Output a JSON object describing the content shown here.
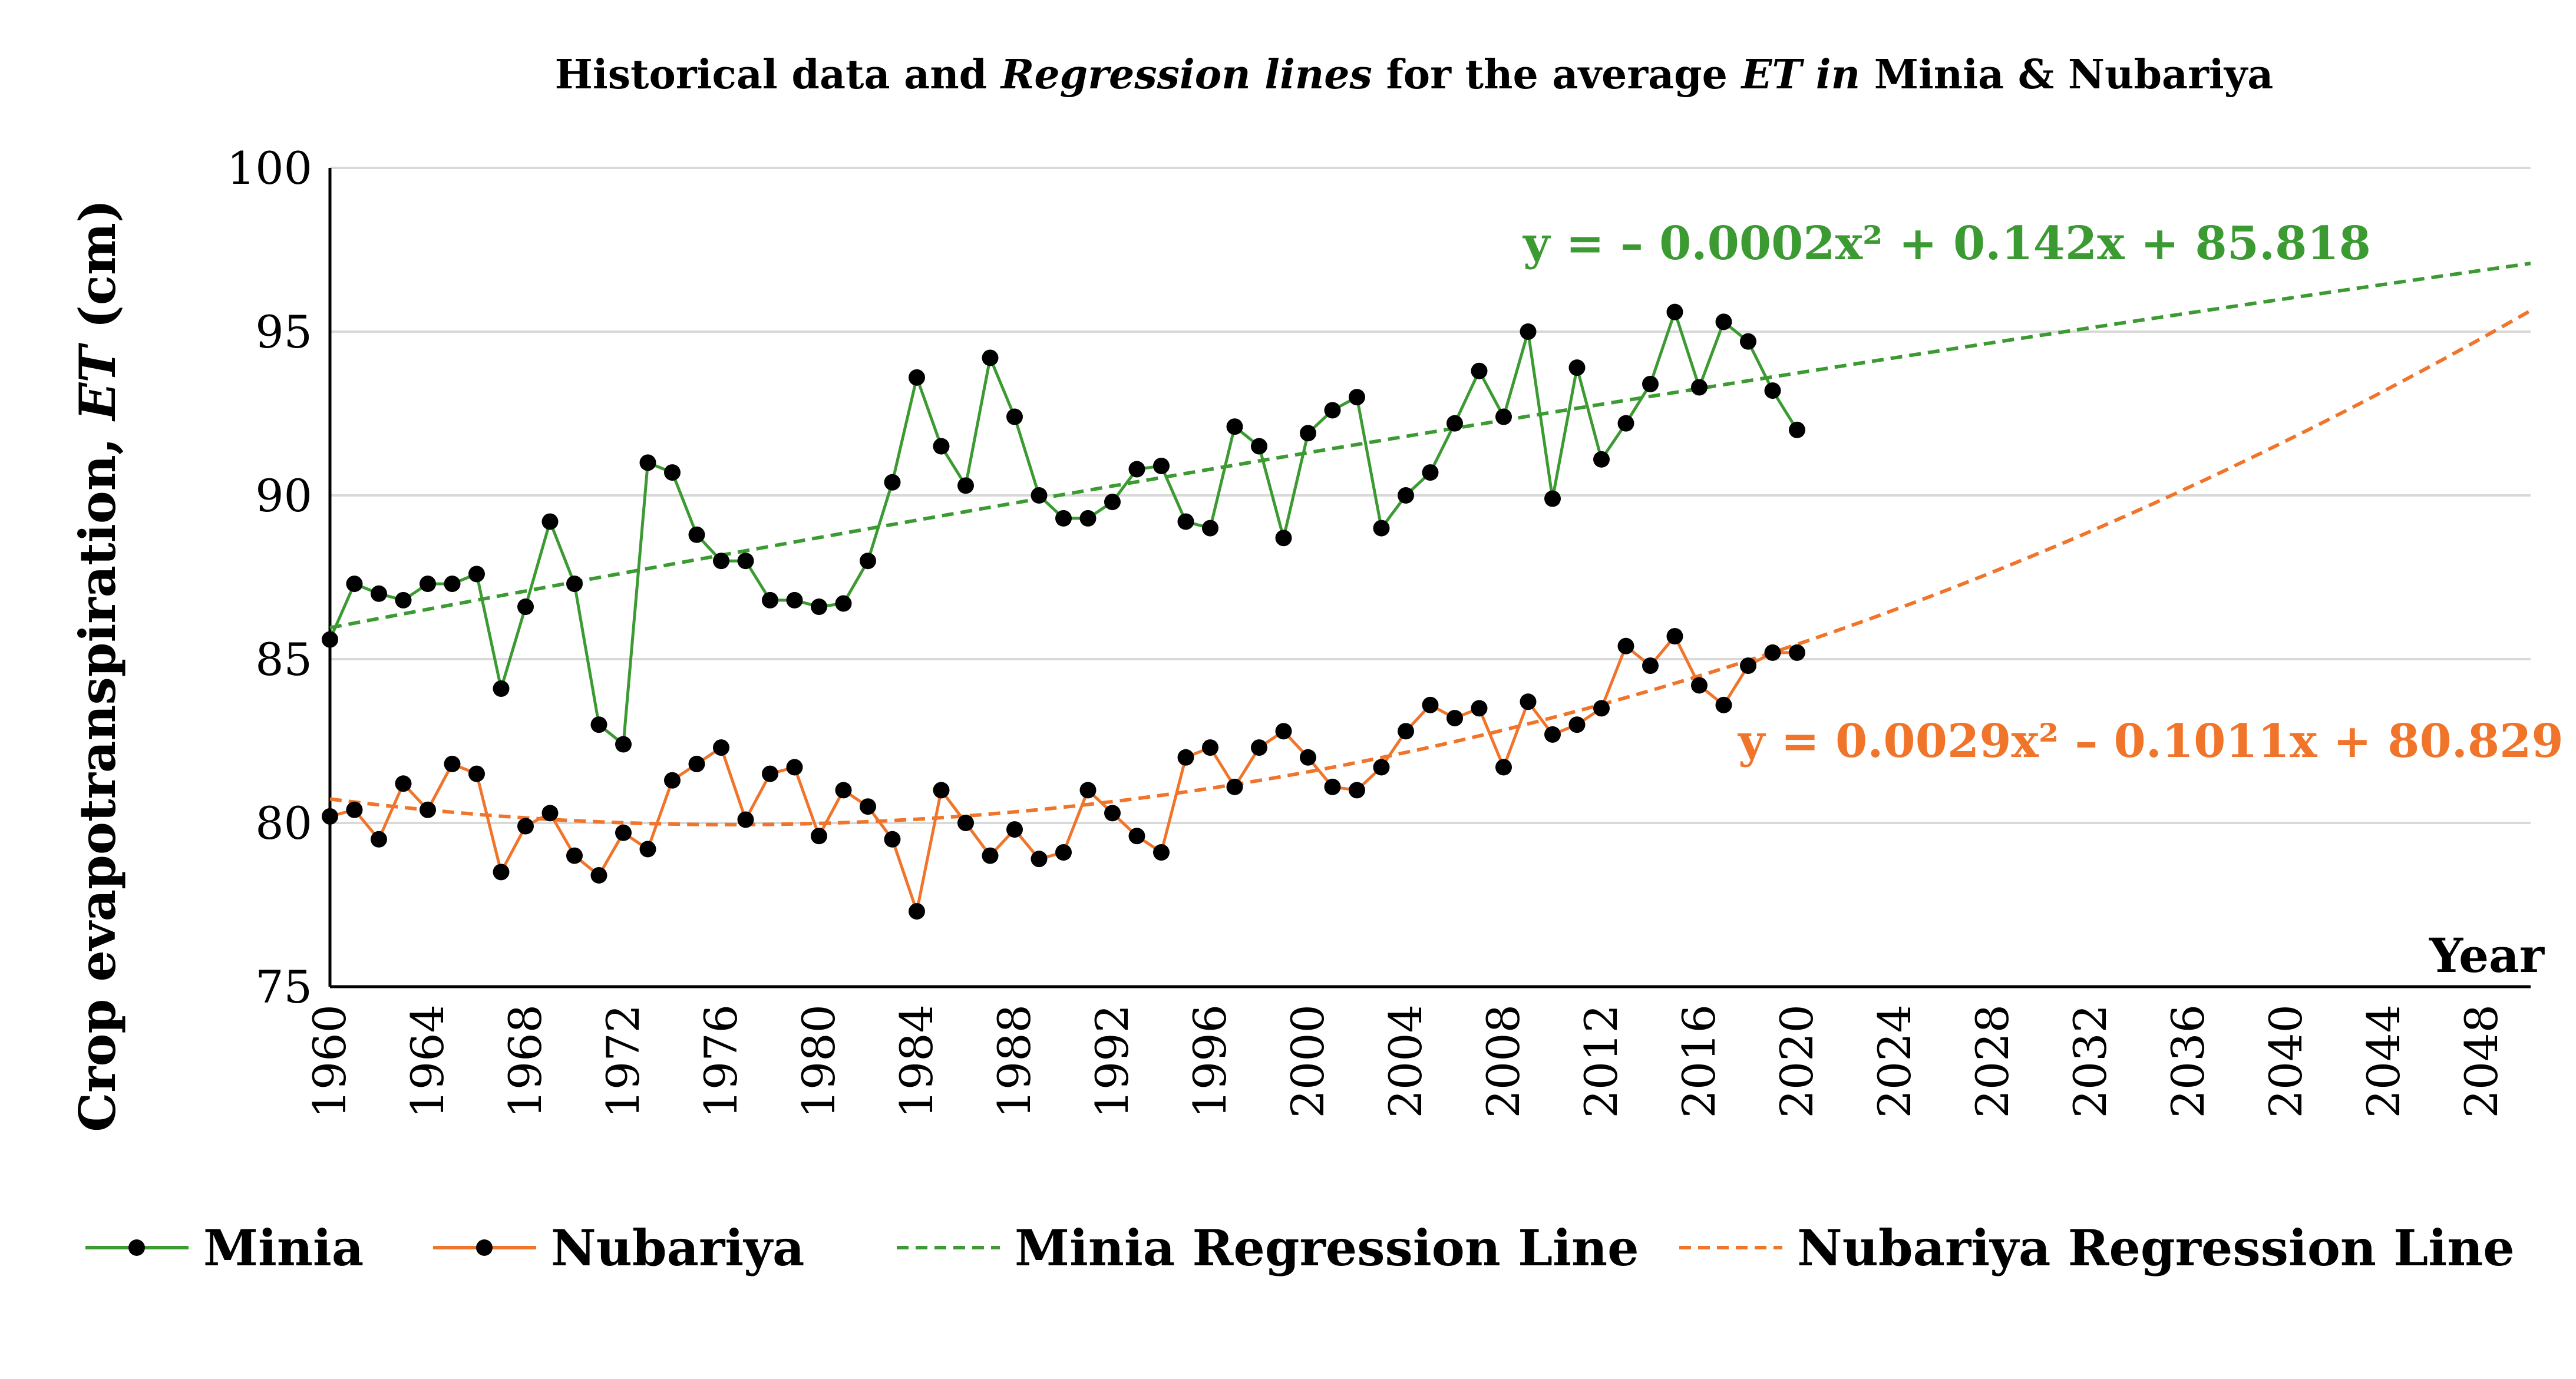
{
  "chart_data": {
    "type": "line",
    "title": {
      "prefix": "Historical data and ",
      "italic1": "Regression lines",
      "middle": " for the average ",
      "italic2": "ET  in",
      "suffix": " Minia & Nubariya"
    },
    "ylabel": {
      "prefix": "Crop evapotranspiration, ",
      "italic": "ET",
      "suffix": " (cm)"
    },
    "xlabel": "Year",
    "ylim": [
      75,
      100
    ],
    "yticks": [
      "75",
      "80",
      "85",
      "90",
      "95",
      "100"
    ],
    "xlim": [
      1960,
      2050
    ],
    "xticks": [
      "1960",
      "1964",
      "1968",
      "1972",
      "1976",
      "1980",
      "1984",
      "1988",
      "1992",
      "1996",
      "2000",
      "2004",
      "2008",
      "2012",
      "2016",
      "2020",
      "2024",
      "2028",
      "2032",
      "2036",
      "2040",
      "2044",
      "2048"
    ],
    "years": [
      1960,
      1961,
      1962,
      1963,
      1964,
      1965,
      1966,
      1967,
      1968,
      1969,
      1970,
      1971,
      1972,
      1973,
      1974,
      1975,
      1976,
      1977,
      1978,
      1979,
      1980,
      1981,
      1982,
      1983,
      1984,
      1985,
      1986,
      1987,
      1988,
      1989,
      1990,
      1991,
      1992,
      1993,
      1994,
      1995,
      1996,
      1997,
      1998,
      1999,
      2000,
      2001,
      2002,
      2003,
      2004,
      2005,
      2006,
      2007,
      2008,
      2009,
      2010,
      2011,
      2012,
      2013,
      2014,
      2015,
      2016,
      2017,
      2018,
      2019,
      2020
    ],
    "series": [
      {
        "name": "Minia",
        "color": "#3c9a32",
        "values": [
          85.6,
          87.3,
          87.0,
          86.8,
          87.3,
          87.3,
          87.6,
          84.1,
          86.6,
          89.2,
          87.3,
          83.0,
          82.4,
          91.0,
          90.7,
          88.8,
          88.0,
          88.0,
          86.8,
          86.8,
          86.6,
          86.7,
          88.0,
          90.4,
          93.6,
          91.5,
          90.3,
          94.2,
          92.4,
          90.0,
          89.3,
          89.3,
          89.8,
          90.8,
          90.9,
          89.2,
          89.0,
          92.1,
          91.5,
          88.7,
          91.9,
          92.6,
          93.0,
          89.0,
          90.0,
          90.7,
          92.2,
          93.8,
          92.4,
          95.0,
          89.9,
          93.9,
          91.1,
          92.2,
          93.4,
          95.6,
          93.3,
          95.3,
          94.7,
          93.2,
          92.0
        ]
      },
      {
        "name": "Nubariya",
        "color": "#f0742a",
        "values": [
          80.2,
          80.4,
          79.5,
          81.2,
          80.4,
          81.8,
          81.5,
          78.5,
          79.9,
          80.3,
          79.0,
          78.4,
          79.7,
          79.2,
          81.3,
          81.8,
          82.3,
          80.1,
          81.5,
          81.7,
          79.6,
          81.0,
          80.5,
          79.5,
          77.3,
          81.0,
          80.0,
          79.0,
          79.8,
          78.9,
          79.1,
          81.0,
          80.3,
          79.6,
          79.1,
          82.0,
          82.3,
          81.1,
          82.3,
          82.8,
          82.0,
          81.1,
          81.0,
          81.7,
          82.8,
          83.6,
          83.2,
          83.5,
          81.7,
          83.7,
          82.7,
          83.0,
          83.5,
          85.4,
          84.8,
          85.7,
          84.2,
          83.6,
          84.8,
          85.2,
          85.2
        ]
      }
    ],
    "regression": [
      {
        "name": "Minia Regression Line",
        "color": "#3c9a32",
        "a": -0.0002,
        "b": 0.142,
        "c": 85.818,
        "equation": "y = – 0.0002x² + 0.142x + 85.818"
      },
      {
        "name": "Nubariya Regression Line",
        "color": "#f0742a",
        "a": 0.0029,
        "b": -0.1011,
        "c": 80.829,
        "equation": "y = 0.0029x² – 0.1011x + 80.829"
      }
    ],
    "legend": [
      "Minia",
      "Nubariya",
      "Minia Regression Line",
      "Nubariya Regression Line"
    ],
    "grid": true
  }
}
